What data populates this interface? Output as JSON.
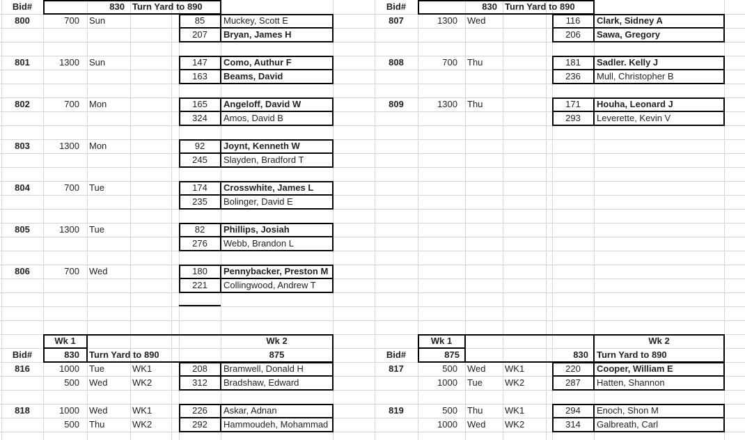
{
  "colors": {
    "background": "#ffffff",
    "grid_line": "#d6d6d6",
    "box_border": "#000000",
    "text": "#222222"
  },
  "sections": {
    "top_left": {
      "bid_col_label": "Bid#",
      "header_code": "830",
      "header_title": "Turn Yard to 890",
      "bids": [
        {
          "bid": "800",
          "time": "700",
          "day": "Sun",
          "employees": [
            {
              "num": "85",
              "name": "Muckey, Scott E",
              "bold": false
            },
            {
              "num": "207",
              "name": "Bryan, James H",
              "bold": true
            }
          ]
        },
        {
          "bid": "801",
          "time": "1300",
          "day": "Sun",
          "employees": [
            {
              "num": "147",
              "name": "Como, Authur F",
              "bold": true
            },
            {
              "num": "163",
              "name": "Beams, David",
              "bold": true
            }
          ]
        },
        {
          "bid": "802",
          "time": "700",
          "day": "Mon",
          "employees": [
            {
              "num": "165",
              "name": "Angeloff, David W",
              "bold": true
            },
            {
              "num": "324",
              "name": "Amos, David B",
              "bold": false
            }
          ]
        },
        {
          "bid": "803",
          "time": "1300",
          "day": "Mon",
          "employees": [
            {
              "num": "92",
              "name": "Joynt, Kenneth W",
              "bold": true
            },
            {
              "num": "245",
              "name": "Slayden, Bradford T",
              "bold": false
            }
          ]
        },
        {
          "bid": "804",
          "time": "700",
          "day": "Tue",
          "employees": [
            {
              "num": "174",
              "name": "Crosswhite, James L",
              "bold": true
            },
            {
              "num": "235",
              "name": "Bolinger, David E",
              "bold": false
            }
          ]
        },
        {
          "bid": "805",
          "time": "1300",
          "day": "Tue",
          "employees": [
            {
              "num": "82",
              "name": "Phillips, Josiah",
              "bold": true
            },
            {
              "num": "276",
              "name": "Webb, Brandon L",
              "bold": false
            }
          ]
        },
        {
          "bid": "806",
          "time": "700",
          "day": "Wed",
          "employees": [
            {
              "num": "180",
              "name": "Pennybacker, Preston M",
              "bold": true
            },
            {
              "num": "221",
              "name": "Collingwood, Andrew T",
              "bold": false
            }
          ]
        }
      ]
    },
    "top_right": {
      "bid_col_label": "Bid#",
      "header_code": "830",
      "header_title": "Turn Yard to 890",
      "bids": [
        {
          "bid": "807",
          "time": "1300",
          "day": "Wed",
          "employees": [
            {
              "num": "116",
              "name": "Clark, Sidney A",
              "bold": true
            },
            {
              "num": "206",
              "name": "Sawa, Gregory",
              "bold": true
            }
          ]
        },
        {
          "bid": "808",
          "time": "700",
          "day": "Thu",
          "employees": [
            {
              "num": "181",
              "name": "Sadler. Kelly J",
              "bold": true
            },
            {
              "num": "236",
              "name": "Mull, Christopher B",
              "bold": false
            }
          ]
        },
        {
          "bid": "809",
          "time": "1300",
          "day": "Thu",
          "employees": [
            {
              "num": "171",
              "name": "Houha, Leonard J",
              "bold": true
            },
            {
              "num": "293",
              "name": "Leverette, Kevin V",
              "bold": false
            }
          ]
        }
      ]
    },
    "bottom_left": {
      "bid_col_label": "Bid#",
      "wk1_label": "Wk 1",
      "wk2_label": "Wk 2",
      "wk1_code": "830",
      "wk1_title": "Turn Yard to 890",
      "wk2_value": "875",
      "bids": [
        {
          "bid": "816",
          "rows": [
            {
              "time": "1000",
              "day": "Tue",
              "wk": "WK1",
              "num": "208",
              "name": "Bramwell, Donald H",
              "bold": false
            },
            {
              "time": "500",
              "day": "Wed",
              "wk": "WK2",
              "num": "312",
              "name": "Bradshaw, Edward",
              "bold": false
            }
          ]
        },
        {
          "bid": "818",
          "rows": [
            {
              "time": "1000",
              "day": "Wed",
              "wk": "WK1",
              "num": "226",
              "name": "Askar, Adnan",
              "bold": false
            },
            {
              "time": "500",
              "day": "Thu",
              "wk": "WK2",
              "num": "292",
              "name": "Hammoudeh, Mohammad",
              "bold": false
            }
          ]
        }
      ]
    },
    "bottom_right": {
      "bid_col_label": "Bid#",
      "wk1_label": "Wk 1",
      "wk2_label": "Wk 2",
      "wk1_value": "875",
      "wk2_code": "830",
      "wk2_title": "Turn Yard to 890",
      "bids": [
        {
          "bid": "817",
          "rows": [
            {
              "time": "500",
              "day": "Wed",
              "wk": "WK1",
              "num": "220",
              "name": "Cooper, William E",
              "bold": true
            },
            {
              "time": "1000",
              "day": "Tue",
              "wk": "WK2",
              "num": "287",
              "name": "Hatten, Shannon",
              "bold": false
            }
          ]
        },
        {
          "bid": "819",
          "rows": [
            {
              "time": "500",
              "day": "Thu",
              "wk": "WK1",
              "num": "294",
              "name": "Enoch, Shon M",
              "bold": false
            },
            {
              "time": "1000",
              "day": "Wed",
              "wk": "WK2",
              "num": "314",
              "name": "Galbreath, Carl",
              "bold": false
            }
          ]
        }
      ]
    }
  }
}
